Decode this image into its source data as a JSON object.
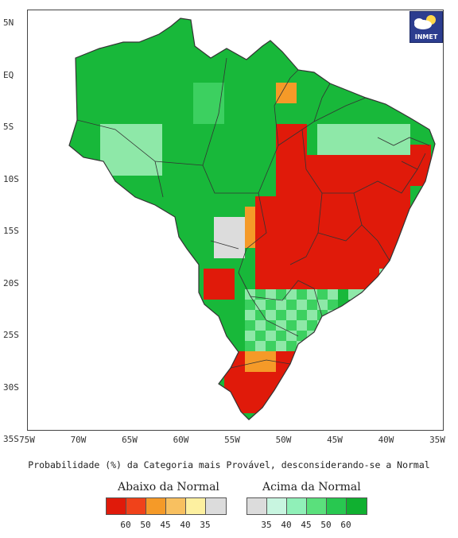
{
  "map": {
    "latitude_labels": [
      "5N",
      "EQ",
      "5S",
      "10S",
      "15S",
      "20S",
      "25S",
      "30S",
      "35S"
    ],
    "longitude_labels": [
      "75W",
      "70W",
      "65W",
      "60W",
      "55W",
      "50W",
      "45W",
      "40W",
      "35W"
    ],
    "caption": "Probabilidade (%) da Categoria mais Provável, desconsiderando-se a Normal",
    "logo_text": "INMET",
    "logo_icon": "cloud-sun-icon"
  },
  "legend": {
    "below_title": "Abaixo da Normal",
    "above_title": "Acima da Normal",
    "below_colors": [
      "#e01a0a",
      "#f0421a",
      "#f59a28",
      "#f8c060",
      "#fdf0a0",
      "#dcdcdc"
    ],
    "above_colors": [
      "#dcdcdc",
      "#c8f5e0",
      "#90f0b8",
      "#5ae07c",
      "#28c850",
      "#10b030"
    ],
    "below_ticks": [
      "60",
      "50",
      "45",
      "40",
      "35"
    ],
    "above_ticks": [
      "35",
      "40",
      "45",
      "50",
      "60"
    ]
  },
  "colors": {
    "green_dark": "#18b83a",
    "green_mid": "#3cd060",
    "green_light": "#8ee8a8",
    "red": "#e01a0a",
    "orange": "#f59a28",
    "grey": "#dcdcdc",
    "border": "#333333"
  }
}
